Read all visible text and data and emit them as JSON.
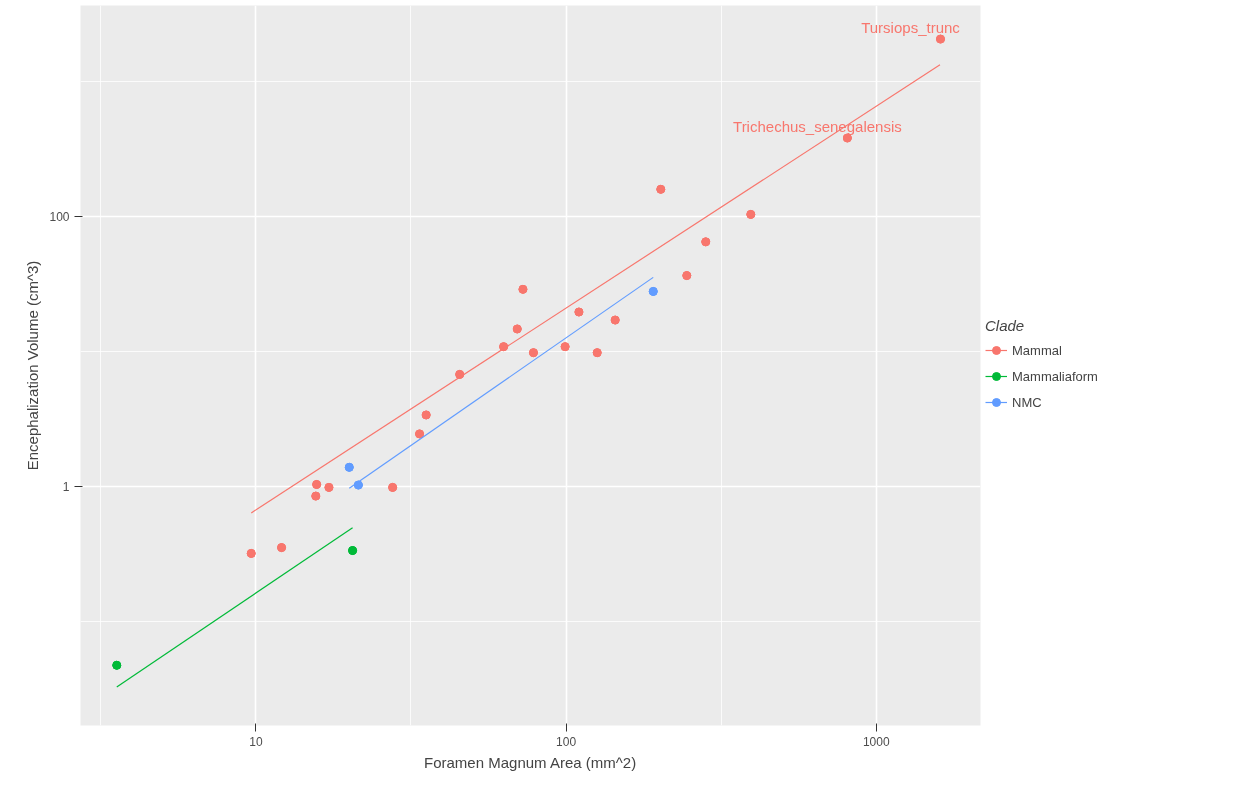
{
  "chart_data": {
    "type": "scatter",
    "xlabel": "Foramen Magnum Area (mm^2)",
    "ylabel": "Encephalization Volume (cm^3)",
    "legend_title": "Clade",
    "legend": "right",
    "log": "xy",
    "grid": true,
    "marker": "circle",
    "xlim": [
      2.72,
      2168
    ],
    "ylim": [
      0.0169,
      3630
    ],
    "xticks": [
      {
        "value": 3.16,
        "label": null
      },
      10,
      {
        "value": 31.6,
        "label": null
      },
      100,
      {
        "value": 316,
        "label": null
      },
      1000
    ],
    "yticks": [
      {
        "value": 0.1,
        "label": null
      },
      1,
      {
        "value": 10,
        "label": null
      },
      100,
      {
        "value": 1000,
        "label": null
      }
    ],
    "series": [
      {
        "name": "Mammal",
        "color": "#f8766d",
        "x": [
          9.66,
          12.1,
          15.6,
          15.7,
          17.2,
          27.6,
          33.7,
          35.4,
          45.4,
          62.9,
          69.6,
          72.6,
          78.5,
          99.3,
          110,
          126,
          144,
          202,
          245,
          282,
          394,
          807,
          1611
        ],
        "values": [
          0.318,
          0.351,
          0.845,
          1.03,
          0.98,
          0.98,
          2.44,
          3.37,
          6.73,
          10.8,
          14.6,
          28.7,
          9.75,
          10.8,
          19.5,
          9.75,
          17.0,
          158,
          36.3,
          64.5,
          103,
          379,
          2048
        ]
      },
      {
        "name": "Mammaliaform",
        "color": "#00ba38",
        "x": [
          3.56,
          20.5
        ],
        "values": [
          0.0472,
          0.334
        ]
      },
      {
        "name": "NMC",
        "color": "#619cff",
        "x": [
          20.0,
          21.4,
          191
        ],
        "values": [
          1.38,
          1.02,
          27.7
        ]
      },
      {
        "color": "#f8766d",
        "type": "line",
        "marker": "none",
        "x": [
          9.66,
          1605
        ],
        "values": [
          0.634,
          1321
        ]
      },
      {
        "color": "#00ba38",
        "type": "line",
        "marker": "none",
        "x": [
          3.56,
          20.5
        ],
        "values": [
          0.0326,
          0.492
        ]
      },
      {
        "color": "#619cff",
        "type": "line",
        "marker": "none",
        "x": [
          20.0,
          191
        ],
        "values": [
          0.966,
          35.2
        ]
      }
    ],
    "annotations": [
      {
        "text": "Tursiops_trunc",
        "x": 1611,
        "y": 2048
      },
      {
        "text": "Trichechus_senegalensis",
        "x": 807,
        "y": 379
      }
    ]
  }
}
